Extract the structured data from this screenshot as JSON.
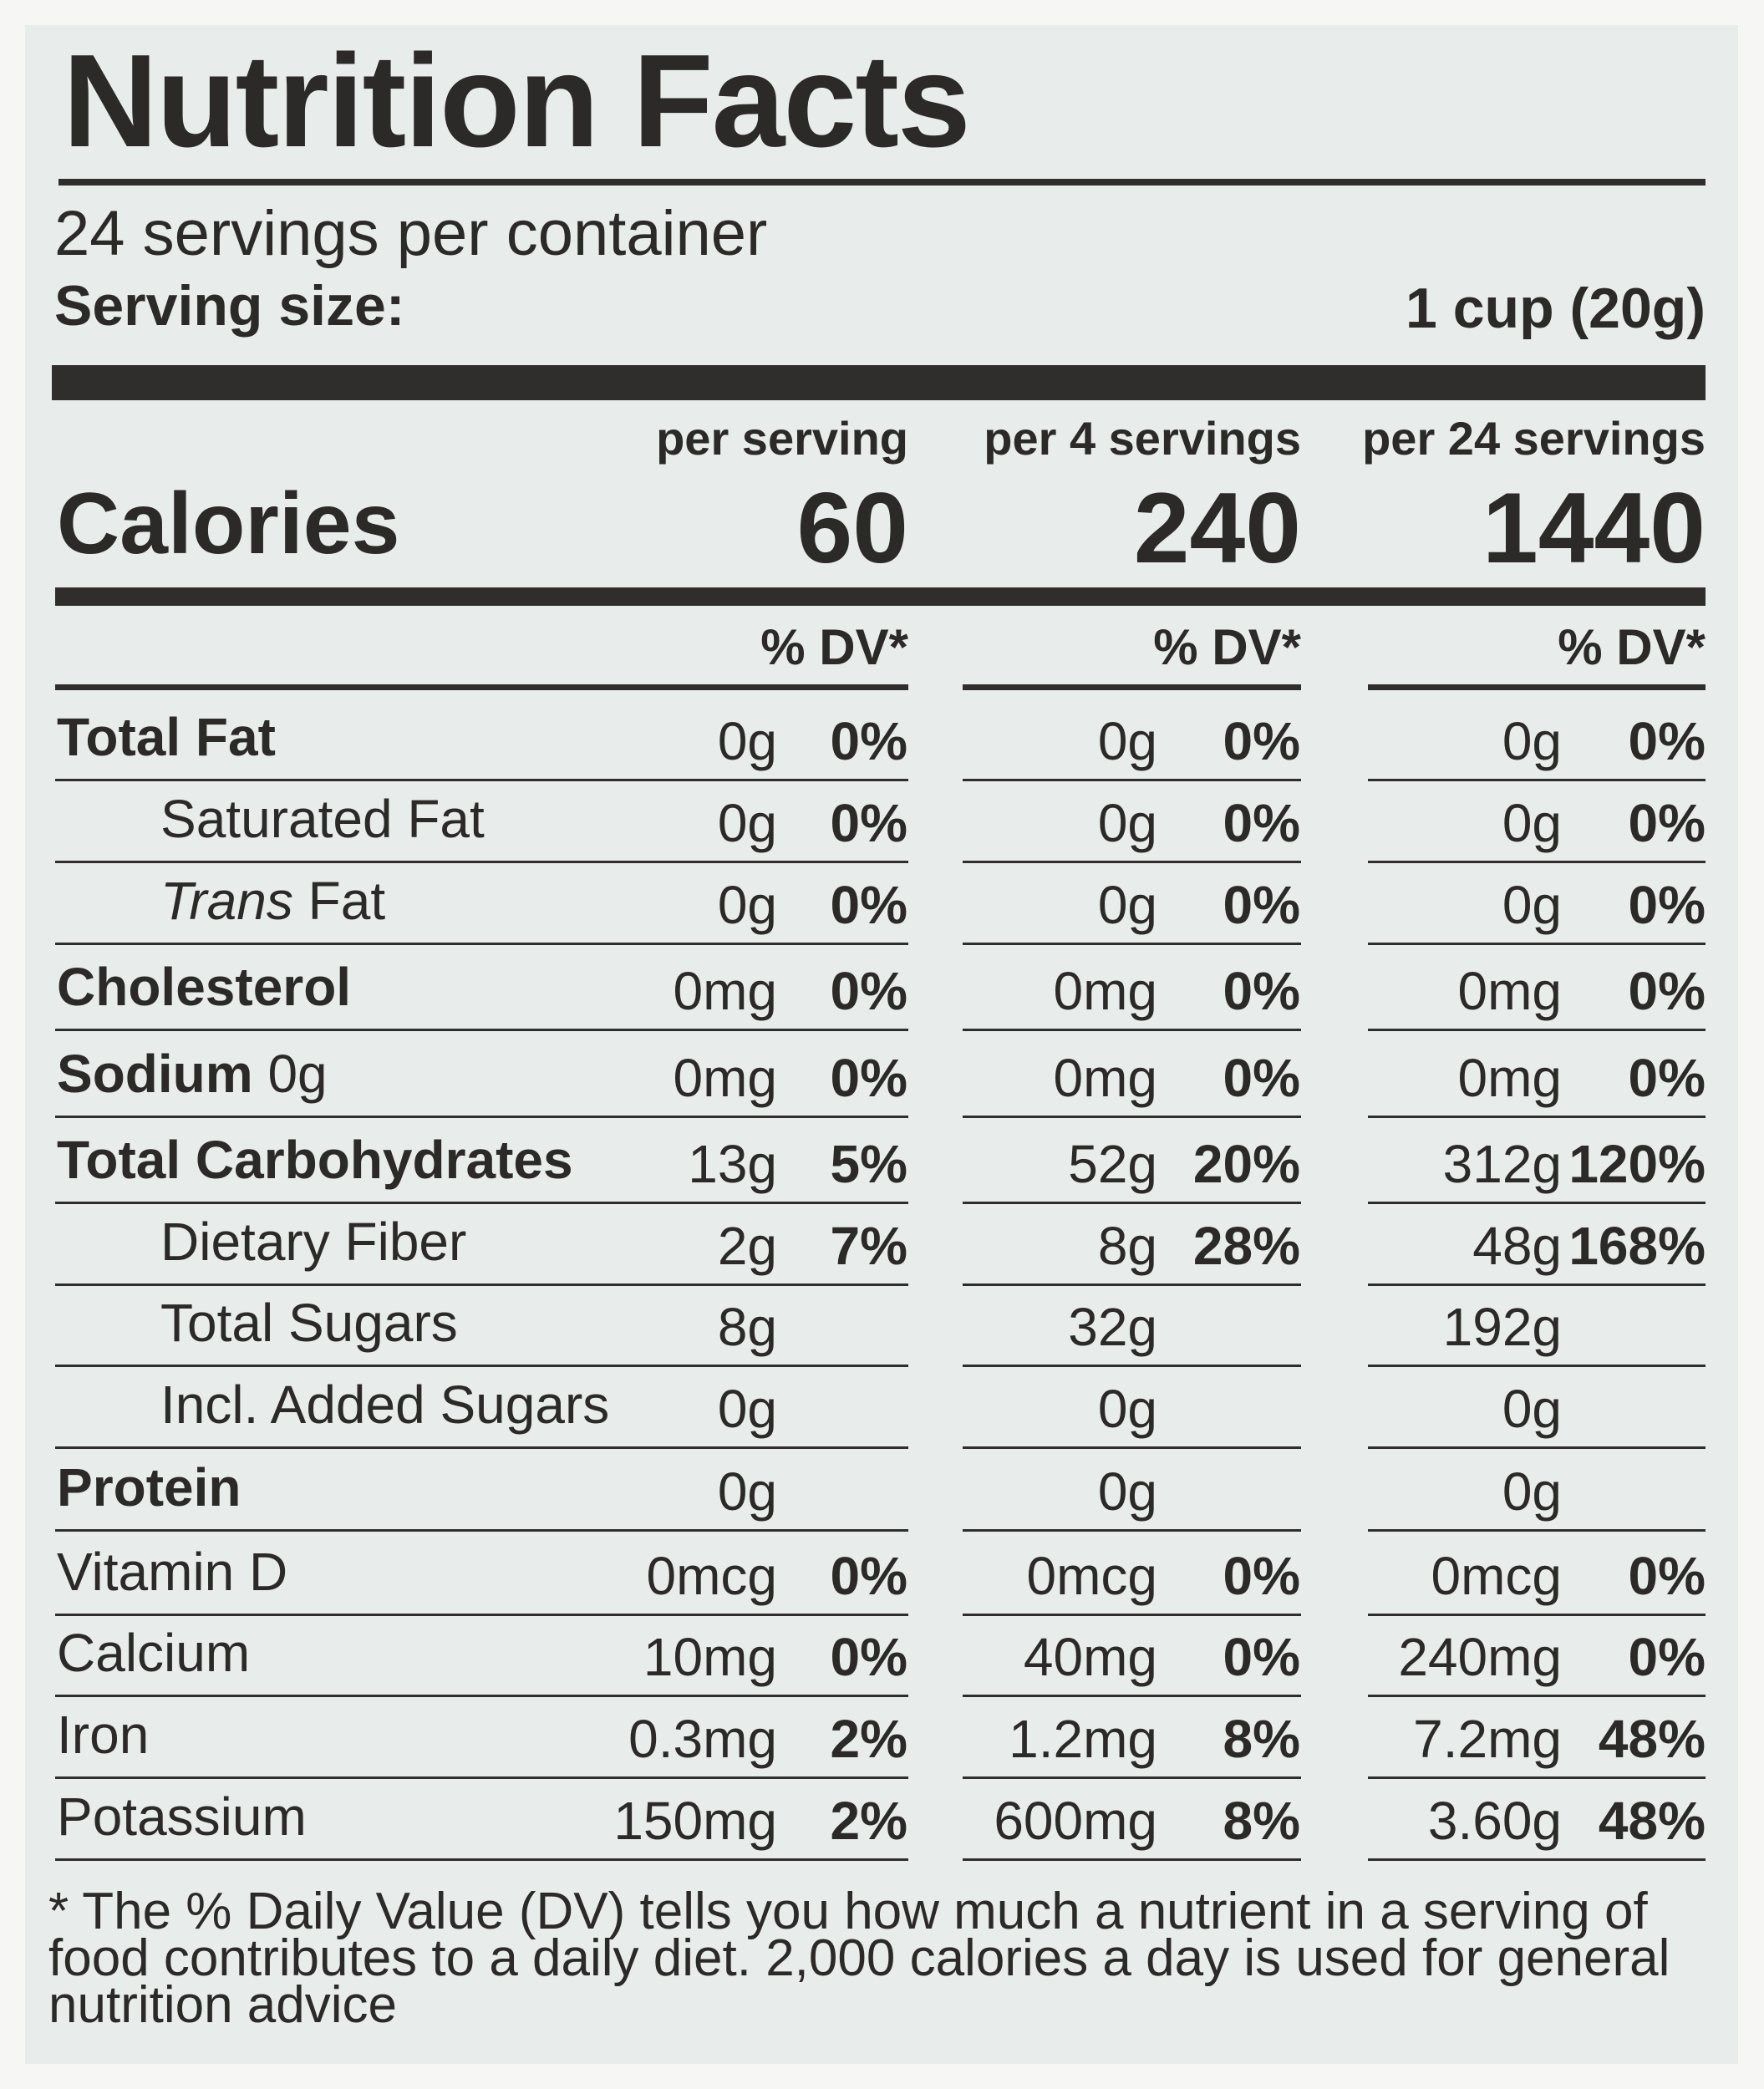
{
  "label": {
    "title": "Nutrition Facts",
    "servings_per_container": "24 servings per container",
    "serving_size_label": "Serving size:",
    "serving_size_value": "1 cup (20g)"
  },
  "columns": [
    {
      "heading": "per serving",
      "calories": "60",
      "dv_heading": "% DV*"
    },
    {
      "heading": "per 4 servings",
      "calories": "240",
      "dv_heading": "% DV*"
    },
    {
      "heading": "per 24 servings",
      "calories": "1440",
      "dv_heading": "% DV*"
    }
  ],
  "calories_label": "Calories",
  "nutrients": [
    {
      "name": "Total Fat",
      "suffix": "",
      "bold": true,
      "indent": false,
      "italic_prefix": "",
      "amounts": [
        "0g",
        "0g",
        "0g"
      ],
      "dv": [
        "0%",
        "0%",
        "0%"
      ]
    },
    {
      "name": "Saturated Fat",
      "suffix": "",
      "bold": false,
      "indent": true,
      "italic_prefix": "",
      "amounts": [
        "0g",
        "0g",
        "0g"
      ],
      "dv": [
        "0%",
        "0%",
        "0%"
      ]
    },
    {
      "name": " Fat",
      "suffix": "",
      "bold": false,
      "indent": true,
      "italic_prefix": "Trans",
      "amounts": [
        "0g",
        "0g",
        "0g"
      ],
      "dv": [
        "0%",
        "0%",
        "0%"
      ]
    },
    {
      "name": "Cholesterol",
      "suffix": "",
      "bold": true,
      "indent": false,
      "italic_prefix": "",
      "amounts": [
        "0mg",
        "0mg",
        "0mg"
      ],
      "dv": [
        "0%",
        "0%",
        "0%"
      ]
    },
    {
      "name": "Sodium",
      "suffix": " 0g",
      "bold": true,
      "indent": false,
      "italic_prefix": "",
      "amounts": [
        "0mg",
        "0mg",
        "0mg"
      ],
      "dv": [
        "0%",
        "0%",
        "0%"
      ]
    },
    {
      "name": "Total Carbohydrates",
      "suffix": "",
      "bold": true,
      "indent": false,
      "italic_prefix": "",
      "amounts": [
        "13g",
        "52g",
        "312g"
      ],
      "dv": [
        "5%",
        "20%",
        "120%"
      ]
    },
    {
      "name": "Dietary Fiber",
      "suffix": "",
      "bold": false,
      "indent": true,
      "italic_prefix": "",
      "amounts": [
        "2g",
        "8g",
        "48g"
      ],
      "dv": [
        "7%",
        "28%",
        "168%"
      ]
    },
    {
      "name": "Total Sugars",
      "suffix": "",
      "bold": false,
      "indent": true,
      "italic_prefix": "",
      "amounts": [
        "8g",
        "32g",
        "192g"
      ],
      "dv": [
        "",
        "",
        ""
      ]
    },
    {
      "name": "Incl. Added Sugars",
      "suffix": "",
      "bold": false,
      "indent": true,
      "italic_prefix": "",
      "amounts": [
        "0g",
        "0g",
        "0g"
      ],
      "dv": [
        "",
        "",
        ""
      ]
    },
    {
      "name": "Protein",
      "suffix": "",
      "bold": true,
      "indent": false,
      "italic_prefix": "",
      "amounts": [
        "0g",
        "0g",
        "0g"
      ],
      "dv": [
        "",
        "",
        ""
      ]
    },
    {
      "name": "Vitamin D",
      "suffix": "",
      "bold": false,
      "indent": false,
      "italic_prefix": "",
      "amounts": [
        "0mcg",
        "0mcg",
        "0mcg"
      ],
      "dv": [
        "0%",
        "0%",
        "0%"
      ]
    },
    {
      "name": "Calcium",
      "suffix": "",
      "bold": false,
      "indent": false,
      "italic_prefix": "",
      "amounts": [
        "10mg",
        "40mg",
        "240mg"
      ],
      "dv": [
        "0%",
        "0%",
        "0%"
      ]
    },
    {
      "name": "Iron",
      "suffix": "",
      "bold": false,
      "indent": false,
      "italic_prefix": "",
      "amounts": [
        "0.3mg",
        "1.2mg",
        "7.2mg"
      ],
      "dv": [
        "2%",
        "8%",
        "48%"
      ]
    },
    {
      "name": "Potassium",
      "suffix": "",
      "bold": false,
      "indent": false,
      "italic_prefix": "",
      "amounts": [
        "150mg",
        "600mg",
        "3.60g"
      ],
      "dv": [
        "2%",
        "8%",
        "48%"
      ]
    }
  ],
  "footnote": "* The % Daily Value (DV) tells you how much a nutrient in a serving of food contributes to a daily diet. 2,000 calories a day is used for general nutrition advice"
}
